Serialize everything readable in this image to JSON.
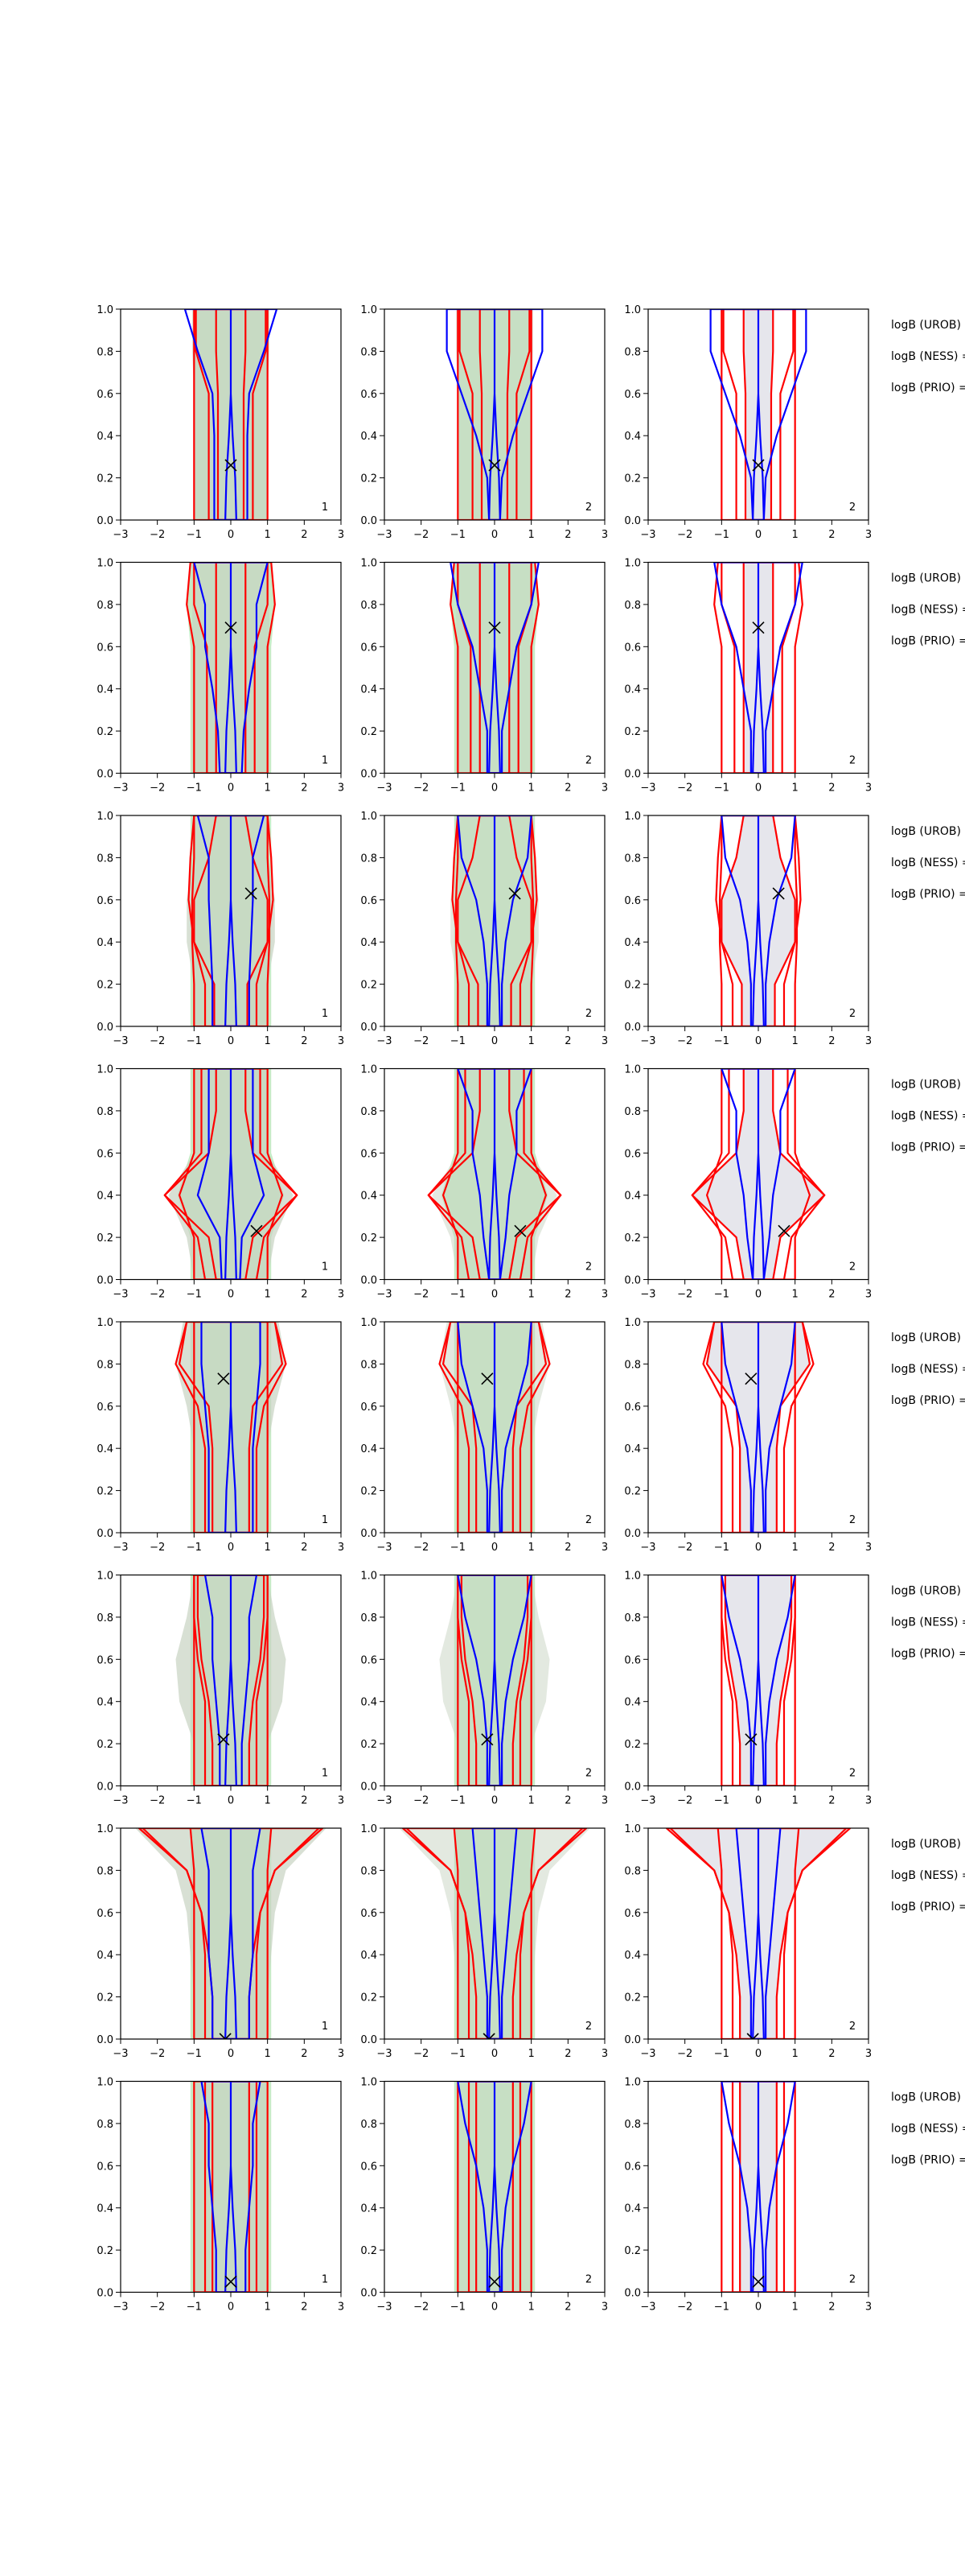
{
  "chart_data": {
    "type": "contour",
    "layout": {
      "rows": 8,
      "cols": 3
    },
    "axes": {
      "xlim": [
        -3,
        3
      ],
      "ylim": [
        0,
        1
      ],
      "xticks": [
        "−3",
        "−2",
        "−1",
        "0",
        "1",
        "2",
        "3"
      ],
      "yticks": [
        "0.0",
        "0.2",
        "0.4",
        "0.6",
        "0.8",
        "1.0"
      ]
    },
    "colors": {
      "fill_green": "#c6ebc6",
      "fill_gray": "#e6e6ec",
      "fill_overlap": "#c7d3c2",
      "red": "#ff0000",
      "blue": "#0000ff",
      "marker": "#000000"
    },
    "panel_labels": [
      "1",
      "2",
      "2"
    ],
    "annotations": [
      "logB (UROB) =",
      "logB (NESS) =",
      "logB (PRIO) ="
    ],
    "rows": [
      {
        "marker": [
          0.0,
          0.26
        ],
        "red": [
          [
            1.0,
            1.0,
            1.0,
            1.0,
            1.0,
            1.0
          ],
          [
            0.35,
            0.35,
            0.35,
            0.35,
            0.4,
            0.4
          ],
          [
            0.6,
            0.6,
            0.6,
            0.6,
            0.95,
            0.95
          ]
        ],
        "blue": [
          [
            0.45,
            0.45,
            0.45,
            0.5,
            0.9,
            1.25
          ],
          [
            0.4,
            0.4,
            0.5,
            0.9,
            1.3,
            1.3
          ],
          [
            0.15,
            0.2,
            0.5,
            0.9,
            1.3,
            1.3
          ]
        ],
        "green": [
          [
            1.0,
            1.0,
            1.0,
            1.0,
            1.0,
            1.0
          ],
          [
            1.0,
            1.0,
            1.0,
            1.0,
            1.05,
            1.05
          ],
          [
            0.0,
            0.0,
            0.0,
            0.0,
            0.0,
            0.0
          ]
        ]
      },
      {
        "marker": [
          0.0,
          0.69
        ],
        "red": [
          [
            1.0,
            1.0,
            1.0,
            1.0,
            1.2,
            1.1
          ],
          [
            0.4,
            0.4,
            0.4,
            0.4,
            0.4,
            0.4
          ],
          [
            0.65,
            0.65,
            0.65,
            0.65,
            1.0,
            1.0
          ]
        ],
        "blue": [
          [
            0.3,
            0.35,
            0.5,
            0.7,
            0.7,
            1.0
          ],
          [
            0.3,
            0.3,
            0.4,
            0.7,
            0.9,
            1.0
          ],
          [
            0.2,
            0.2,
            0.4,
            0.6,
            1.0,
            1.2
          ]
        ],
        "green": [
          [
            1.1,
            1.1,
            1.1,
            1.1,
            1.2,
            1.1
          ],
          [
            1.05,
            1.05,
            1.05,
            1.05,
            1.05,
            1.05
          ],
          [
            0.0,
            0.0,
            0.0,
            0.0,
            0.0,
            0.0
          ]
        ]
      },
      {
        "marker": [
          0.55,
          0.63
        ],
        "red": [
          [
            1.0,
            1.0,
            1.05,
            1.05,
            1.0,
            1.0
          ],
          [
            0.45,
            0.45,
            1.0,
            1.0,
            0.6,
            0.4
          ],
          [
            0.7,
            0.7,
            1.0,
            1.15,
            1.1,
            1.0
          ]
        ],
        "blue": [
          [
            0.5,
            0.5,
            0.55,
            0.6,
            0.6,
            0.9
          ],
          [
            0.45,
            0.45,
            0.45,
            0.55,
            0.75,
            1.0
          ],
          [
            0.2,
            0.2,
            0.3,
            0.5,
            0.9,
            1.0
          ]
        ],
        "green": [
          [
            1.1,
            1.1,
            1.1,
            1.1,
            1.1,
            1.1
          ],
          [
            1.0,
            1.0,
            1.2,
            1.2,
            1.0,
            1.0
          ],
          [
            0.0,
            0.0,
            0.0,
            0.0,
            0.0,
            0.0
          ]
        ]
      },
      {
        "marker": [
          0.7,
          0.23
        ],
        "red": [
          [
            1.0,
            1.0,
            1.4,
            1.0,
            1.0,
            1.0
          ],
          [
            0.4,
            0.6,
            1.8,
            0.6,
            0.4,
            0.4
          ],
          [
            0.7,
            0.9,
            1.8,
            0.8,
            0.8,
            0.8
          ]
        ],
        "blue": [
          [
            0.25,
            0.3,
            0.9,
            0.6,
            0.6,
            0.6
          ],
          [
            0.3,
            0.6,
            0.6,
            0.6,
            0.5,
            0.2
          ],
          [
            0.15,
            0.3,
            0.4,
            0.6,
            0.6,
            1.0
          ]
        ],
        "green": [
          [
            1.1,
            1.1,
            1.45,
            1.1,
            1.1,
            1.1
          ],
          [
            1.0,
            1.2,
            1.7,
            1.0,
            1.0,
            1.0
          ],
          [
            0.0,
            0.0,
            0.0,
            0.0,
            0.0,
            0.0
          ]
        ]
      },
      {
        "marker": [
          -0.2,
          0.73
        ],
        "red": [
          [
            1.0,
            1.0,
            1.0,
            1.0,
            1.0,
            1.0
          ],
          [
            0.5,
            0.5,
            0.5,
            0.6,
            1.4,
            1.2
          ],
          [
            0.7,
            0.7,
            0.7,
            0.9,
            1.5,
            1.2
          ]
        ],
        "blue": [
          [
            0.6,
            0.6,
            0.6,
            0.7,
            0.8,
            0.8
          ],
          [
            0.4,
            0.4,
            0.5,
            0.6,
            0.8,
            0.8
          ],
          [
            0.2,
            0.2,
            0.3,
            0.6,
            0.9,
            1.0
          ]
        ],
        "green": [
          [
            1.1,
            1.1,
            1.1,
            1.1,
            1.1,
            1.1
          ],
          [
            1.0,
            1.0,
            1.0,
            1.2,
            1.5,
            1.3
          ],
          [
            0.0,
            0.0,
            0.0,
            0.0,
            0.0,
            0.0
          ]
        ]
      },
      {
        "marker": [
          -0.2,
          0.22
        ],
        "red": [
          [
            1.0,
            1.0,
            1.0,
            1.0,
            1.0,
            1.0
          ],
          [
            0.5,
            0.5,
            0.6,
            0.8,
            0.9,
            0.9
          ],
          [
            0.7,
            0.7,
            0.7,
            0.9,
            1.0,
            1.0
          ]
        ],
        "blue": [
          [
            0.3,
            0.3,
            0.4,
            0.5,
            0.5,
            0.7
          ],
          [
            0.3,
            0.3,
            0.3,
            0.5,
            0.6,
            0.7
          ],
          [
            0.2,
            0.2,
            0.3,
            0.5,
            0.8,
            1.0
          ]
        ],
        "green": [
          [
            1.1,
            1.1,
            1.1,
            1.1,
            1.1,
            1.1
          ],
          [
            1.0,
            1.0,
            1.4,
            1.5,
            1.2,
            1.0
          ],
          [
            0.0,
            0.0,
            0.0,
            0.0,
            0.0,
            0.0
          ]
        ]
      },
      {
        "marker": [
          -0.15,
          0.0
        ],
        "red": [
          [
            1.0,
            1.0,
            1.0,
            1.0,
            1.0,
            1.1
          ],
          [
            0.5,
            0.5,
            0.6,
            0.8,
            1.2,
            2.4
          ],
          [
            0.7,
            0.7,
            0.7,
            0.8,
            1.2,
            2.5
          ]
        ],
        "blue": [
          [
            0.5,
            0.5,
            0.6,
            0.6,
            0.6,
            0.8
          ],
          [
            0.4,
            0.4,
            0.4,
            0.4,
            0.4,
            0.5
          ],
          [
            0.2,
            0.2,
            0.3,
            0.4,
            0.5,
            0.6
          ]
        ],
        "green": [
          [
            1.1,
            1.1,
            1.1,
            1.1,
            1.1,
            1.1
          ],
          [
            1.0,
            1.0,
            1.1,
            1.2,
            1.5,
            2.6
          ],
          [
            0.0,
            0.0,
            0.0,
            0.0,
            0.0,
            0.0
          ]
        ]
      },
      {
        "marker": [
          0.0,
          0.05
        ],
        "red": [
          [
            1.0,
            1.0,
            1.0,
            1.0,
            1.0,
            1.0
          ],
          [
            0.5,
            0.5,
            0.5,
            0.5,
            0.5,
            0.5
          ],
          [
            0.7,
            0.7,
            0.7,
            0.7,
            0.7,
            0.7
          ]
        ],
        "blue": [
          [
            0.4,
            0.4,
            0.5,
            0.6,
            0.6,
            0.8
          ],
          [
            0.3,
            0.3,
            0.3,
            0.4,
            0.4,
            0.5
          ],
          [
            0.2,
            0.2,
            0.3,
            0.5,
            0.8,
            1.0
          ]
        ],
        "green": [
          [
            1.1,
            1.1,
            1.1,
            1.1,
            1.1,
            1.1
          ],
          [
            1.0,
            1.0,
            1.0,
            1.0,
            1.0,
            1.0
          ],
          [
            0.0,
            0.0,
            0.0,
            0.0,
            0.0,
            0.0
          ]
        ]
      }
    ]
  }
}
